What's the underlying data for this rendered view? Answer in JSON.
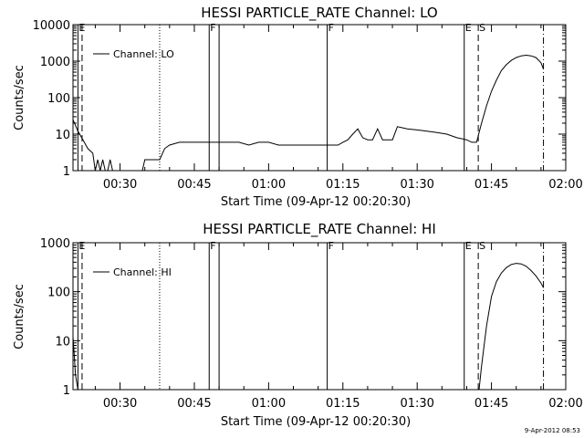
{
  "footer_date": "9-Apr-2012 08:53",
  "chart_data": [
    {
      "type": "line",
      "title": "HESSI PARTICLE_RATE Channel: LO",
      "ylabel": "Counts/sec",
      "xlabel": "Start Time (09-Apr-12 00:20:30)",
      "xlim": [
        "00:20:30",
        "02:00"
      ],
      "ylim": [
        1,
        10000
      ],
      "y_scale": "log",
      "x_ticks": [
        "00:30",
        "00:45",
        "01:00",
        "01:15",
        "01:30",
        "01:45",
        "02:00"
      ],
      "y_ticks": [
        "1",
        "10",
        "100",
        "1000",
        "10000"
      ],
      "legend": {
        "entries": [
          "Channel: LO"
        ],
        "placement": "top-left"
      },
      "markers": [
        {
          "time": "00:21:30",
          "style": "solid",
          "label": "E"
        },
        {
          "time": "00:22:20",
          "style": "dashed",
          "label": ""
        },
        {
          "time": "00:38:00",
          "style": "dotted",
          "label": ""
        },
        {
          "time": "00:48:00",
          "style": "solid",
          "label": "F"
        },
        {
          "time": "00:50:00",
          "style": "solid",
          "label": ""
        },
        {
          "time": "01:11:50",
          "style": "solid",
          "label": "F"
        },
        {
          "time": "01:39:30",
          "style": "solid",
          "label": "E"
        },
        {
          "time": "01:42:20",
          "style": "dashed",
          "label": "S"
        },
        {
          "time": "01:55:30",
          "style": "dashdot",
          "label": ""
        }
      ],
      "series": [
        {
          "color": "#000000",
          "x": [
            "00:20:30",
            "00:21:30",
            "00:22:30",
            "00:23:30",
            "00:24:30",
            "00:25:00",
            "00:25:30",
            "00:26:00",
            "00:26:30",
            "00:27:00",
            "00:27:30",
            "00:28:00",
            "00:28:30",
            "00:29:00",
            "00:29:30",
            "00:30:00",
            "00:30:30",
            "00:31:00",
            "00:31:30",
            "00:32:00",
            "00:32:30",
            "00:33:00",
            "00:33:30",
            "00:34:00",
            "00:34:30",
            "00:35:00",
            "00:36:00",
            "00:37:00",
            "00:38:00",
            "00:39:00",
            "00:40:00",
            "00:42:00",
            "00:44:00",
            "00:46:00",
            "00:48:00",
            "00:50:00",
            "00:52:00",
            "00:54:00",
            "00:56:00",
            "00:58:00",
            "01:00:00",
            "01:02:00",
            "01:04:00",
            "01:06:00",
            "01:08:00",
            "01:10:00",
            "01:12:00",
            "01:14:00",
            "01:15:00",
            "01:16:00",
            "01:17:00",
            "01:18:00",
            "01:19:00",
            "01:20:00",
            "01:21:00",
            "01:22:00",
            "01:23:00",
            "01:24:00",
            "01:25:00",
            "01:26:00",
            "01:27:00",
            "01:28:00",
            "01:30:00",
            "01:32:00",
            "01:34:00",
            "01:36:00",
            "01:38:00",
            "01:40:00",
            "01:41:00",
            "01:42:00",
            "01:43:00",
            "01:44:00",
            "01:45:00",
            "01:46:00",
            "01:47:00",
            "01:48:00",
            "01:49:00",
            "01:50:00",
            "01:51:00",
            "01:52:00",
            "01:53:00",
            "01:54:00",
            "01:55:00",
            "01:55:30"
          ],
          "y": [
            25,
            12,
            7,
            4,
            3,
            1,
            2,
            1,
            2,
            1,
            1,
            2,
            1,
            1,
            1,
            1,
            1,
            1,
            1,
            1,
            1,
            1,
            1,
            1,
            1,
            2,
            2,
            2,
            2,
            4,
            5,
            6,
            6,
            6,
            6,
            6,
            6,
            6,
            5,
            6,
            6,
            5,
            5,
            5,
            5,
            5,
            5,
            5,
            6,
            7,
            10,
            14,
            8,
            7,
            7,
            14,
            7,
            7,
            7,
            16,
            15,
            14,
            13,
            12,
            11,
            10,
            8,
            7,
            6,
            6,
            20,
            60,
            150,
            300,
            550,
            800,
            1050,
            1250,
            1400,
            1450,
            1400,
            1250,
            900,
            600
          ]
        }
      ]
    },
    {
      "type": "line",
      "title": "HESSI PARTICLE_RATE Channel: HI",
      "ylabel": "Counts/sec",
      "xlabel": "Start Time (09-Apr-12 00:20:30)",
      "xlim": [
        "00:20:30",
        "02:00"
      ],
      "ylim": [
        1,
        1000
      ],
      "y_scale": "log",
      "x_ticks": [
        "00:30",
        "00:45",
        "01:00",
        "01:15",
        "01:30",
        "01:45",
        "02:00"
      ],
      "y_ticks": [
        "1",
        "10",
        "100",
        "1000"
      ],
      "legend": {
        "entries": [
          "Channel: HI"
        ],
        "placement": "top-left"
      },
      "markers": [
        {
          "time": "00:21:30",
          "style": "solid",
          "label": "E"
        },
        {
          "time": "00:22:20",
          "style": "dashed",
          "label": ""
        },
        {
          "time": "00:38:00",
          "style": "dotted",
          "label": ""
        },
        {
          "time": "00:48:00",
          "style": "solid",
          "label": "F"
        },
        {
          "time": "00:50:00",
          "style": "solid",
          "label": ""
        },
        {
          "time": "01:11:50",
          "style": "solid",
          "label": "F"
        },
        {
          "time": "01:39:30",
          "style": "solid",
          "label": "E"
        },
        {
          "time": "01:42:20",
          "style": "dashed",
          "label": "S"
        },
        {
          "time": "01:55:30",
          "style": "dashdot",
          "label": ""
        }
      ],
      "series": [
        {
          "color": "#000000",
          "x": [
            "00:20:30",
            "00:20:45",
            "00:21:00",
            "00:21:30",
            "01:42:30",
            "01:43:00",
            "01:44:00",
            "01:45:00",
            "01:46:00",
            "01:47:00",
            "01:48:00",
            "01:49:00",
            "01:50:00",
            "01:51:00",
            "01:52:00",
            "01:53:00",
            "01:54:00",
            "01:55:00",
            "01:55:30"
          ],
          "y": [
            12,
            5,
            2,
            1,
            1,
            3,
            20,
            80,
            160,
            240,
            310,
            360,
            380,
            370,
            330,
            270,
            210,
            150,
            120
          ]
        }
      ]
    }
  ]
}
